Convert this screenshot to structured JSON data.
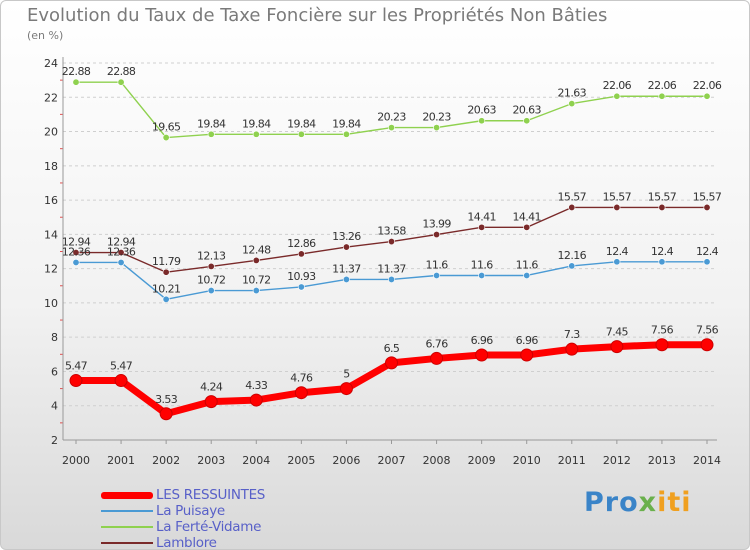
{
  "chart_data": {
    "type": "line",
    "title": "Evolution du Taux de Taxe Foncière sur les Propriétés Non Bâties",
    "subtitle": "(en %)",
    "x": [
      "2000",
      "2001",
      "2002",
      "2003",
      "2004",
      "2005",
      "2006",
      "2007",
      "2008",
      "2009",
      "2010",
      "2011",
      "2012",
      "2013",
      "2014"
    ],
    "ylim": [
      2,
      24
    ],
    "yticks": [
      2,
      4,
      6,
      8,
      10,
      12,
      14,
      16,
      18,
      20,
      22,
      24
    ],
    "grid": "horizontal-dashed",
    "legend_position": "bottom-left",
    "series": [
      {
        "name": "LES RESSUINTES",
        "color": "#ff0000",
        "values": [
          5.47,
          5.47,
          3.53,
          4.24,
          4.33,
          4.76,
          5,
          6.5,
          6.76,
          6.96,
          6.96,
          7.3,
          7.45,
          7.56,
          7.56
        ],
        "labels": [
          "5.47",
          "5.47",
          "3.53",
          "4.24",
          "4.33",
          "4.76",
          "5",
          "6.5",
          "6.76",
          "6.96",
          "6.96",
          "7.3",
          "7.45",
          "7.56",
          "7.56"
        ]
      },
      {
        "name": "La Puisaye",
        "color": "#4a9ad4",
        "values": [
          12.36,
          12.36,
          10.21,
          10.72,
          10.72,
          10.93,
          11.37,
          11.37,
          11.6,
          11.6,
          11.6,
          12.16,
          12.4,
          12.4,
          12.4
        ],
        "labels": [
          "12.36",
          "12.36",
          "10.21",
          "10.72",
          "10.72",
          "10.93",
          "11.37",
          "11.37",
          "11.6",
          "11.6",
          "11.6",
          "12.16",
          "12.4",
          "12.4",
          "12.4"
        ]
      },
      {
        "name": "La Ferté-Vidame",
        "color": "#8fd14f",
        "values": [
          22.88,
          22.88,
          19.65,
          19.84,
          19.84,
          19.84,
          19.84,
          20.23,
          20.23,
          20.63,
          20.63,
          21.63,
          22.06,
          22.06,
          22.06
        ],
        "labels": [
          "22.88",
          "22.88",
          "19.65",
          "19.84",
          "19.84",
          "19.84",
          "19.84",
          "20.23",
          "20.23",
          "20.63",
          "20.63",
          "21.63",
          "22.06",
          "22.06",
          "22.06"
        ]
      },
      {
        "name": "Lamblore",
        "color": "#7a2a2a",
        "values": [
          12.94,
          12.94,
          11.79,
          12.13,
          12.48,
          12.86,
          13.26,
          13.58,
          13.99,
          14.41,
          14.41,
          15.57,
          15.57,
          15.57,
          15.57
        ],
        "labels": [
          "12.94",
          "12.94",
          "11.79",
          "12.13",
          "12.48",
          "12.86",
          "13.26",
          "13.58",
          "13.99",
          "14.41",
          "14.41",
          "15.57",
          "15.57",
          "15.57",
          "15.57"
        ]
      }
    ]
  },
  "brand": {
    "p1": "Pro",
    "p2": "x",
    "p3": "iti"
  }
}
